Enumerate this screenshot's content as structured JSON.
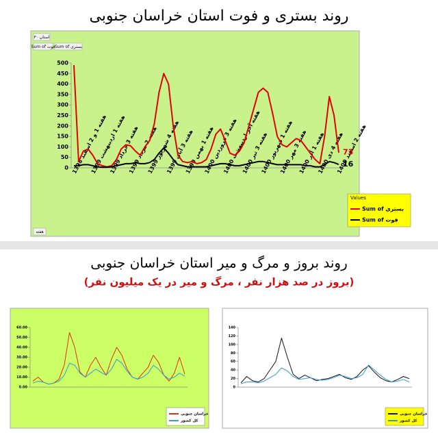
{
  "header": {
    "title": "روند بستری و فوت استان خراسان جنوبی"
  },
  "controls": {
    "filter": "استان ۳۰",
    "field1": "Sum of فوت",
    "field2": "Sum of بستری",
    "axis_field": "هفته"
  },
  "section2": {
    "title": "روند بروز و مرگ و میر استان خراسان جنوبی",
    "subtitle": "(بروز در صد هزار نفر ، مرگ و میر در یک میلیون نفر)"
  },
  "chart_data": [
    {
      "type": "line",
      "legend_title": "Values",
      "categories": [
        "هفته 1 و 2 اسفند 1398",
        null,
        null,
        null,
        "هفته 1 اردیبهشت 1399",
        null,
        null,
        null,
        "هفته 3 خرداد 1399",
        null,
        null,
        null,
        "هفته 2 مرداد 1399",
        null,
        null,
        null,
        "هفته 4 شهریور 1399",
        null,
        null,
        null,
        "هفته 3 آبان 1399",
        null,
        null,
        null,
        "هفته 1 بهمن 1399",
        null,
        null,
        null,
        "هفته 3 فروردین 1400",
        null,
        null,
        null,
        "هفته آخر اردیبهشت 1400",
        null,
        null,
        null,
        "هفته 3 تیر 1400",
        null,
        null,
        null,
        "هفته 1 شهریور 1400",
        null,
        null,
        null,
        "هفته 3 مهر 1400",
        null,
        null,
        null,
        "هفته 1 آذر 1400",
        null,
        null,
        null,
        "هفته 4 دی 1400",
        null,
        null,
        null,
        "هفته 2 اسفند 1400"
      ],
      "series": [
        {
          "name": "Sum of بستری",
          "color": "#e00000",
          "end_label": true,
          "values": [
            490,
            30,
            80,
            90,
            60,
            20,
            10,
            5,
            10,
            40,
            90,
            110,
            105,
            80,
            60,
            100,
            130,
            210,
            360,
            450,
            400,
            200,
            60,
            30,
            25,
            30,
            20,
            25,
            40,
            90,
            160,
            185,
            130,
            70,
            60,
            80,
            120,
            200,
            280,
            360,
            380,
            360,
            260,
            150,
            110,
            100,
            120,
            140,
            130,
            100,
            70,
            40,
            20,
            150,
            340,
            250,
            73
          ]
        },
        {
          "name": "Sum of فوت",
          "color": "#000000",
          "end_label": true,
          "values": [
            10,
            10,
            15,
            15,
            10,
            5,
            3,
            3,
            5,
            10,
            15,
            20,
            20,
            25,
            20,
            20,
            25,
            40,
            70,
            95,
            70,
            40,
            15,
            10,
            5,
            5,
            5,
            5,
            5,
            10,
            15,
            20,
            20,
            15,
            10,
            10,
            15,
            20,
            25,
            30,
            30,
            25,
            20,
            15,
            15,
            15,
            15,
            15,
            15,
            10,
            10,
            5,
            5,
            15,
            30,
            25,
            16
          ]
        }
      ],
      "ylim": [
        0,
        500
      ],
      "yticks": [
        0,
        50,
        100,
        150,
        200,
        250,
        300,
        350,
        400,
        450,
        500
      ],
      "grid": false,
      "background": "#c9f28c"
    },
    {
      "type": "line",
      "categories": [
        null,
        null,
        null,
        null,
        null,
        null,
        null,
        null,
        null,
        null,
        null,
        null,
        null,
        null,
        null,
        null,
        null,
        null,
        null,
        null,
        null,
        null,
        null,
        null,
        null,
        null,
        null,
        null,
        null,
        null
      ],
      "series": [
        {
          "name": "خراسان جنوبی",
          "color": "#e03010",
          "values": [
            6,
            10,
            5,
            3,
            4,
            8,
            22,
            55,
            40,
            15,
            10,
            22,
            30,
            20,
            12,
            28,
            40,
            32,
            18,
            10,
            8,
            14,
            20,
            32,
            25,
            12,
            6,
            14,
            30,
            13
          ]
        },
        {
          "name": "کل کشور",
          "color": "#2aa0d8",
          "values": [
            4,
            6,
            5,
            3,
            4,
            6,
            12,
            24,
            22,
            14,
            10,
            14,
            18,
            15,
            12,
            18,
            28,
            24,
            16,
            10,
            8,
            10,
            14,
            22,
            18,
            12,
            8,
            10,
            14,
            11
          ]
        }
      ],
      "ylim": [
        0,
        60
      ],
      "yticks": [
        {
          "value": 0,
          "label": "0.00"
        },
        {
          "value": 10,
          "label": "10.00"
        },
        {
          "value": 20,
          "label": "20.00"
        },
        {
          "value": 30,
          "label": "30.00"
        },
        {
          "value": 40,
          "label": "40.00"
        },
        {
          "value": 50,
          "label": "50.00"
        },
        {
          "value": 60,
          "label": "60.00"
        }
      ],
      "grid": false,
      "background": "#ccff66"
    },
    {
      "type": "line",
      "categories": [
        null,
        null,
        null,
        null,
        null,
        null,
        null,
        null,
        null,
        null,
        null,
        null,
        null,
        null,
        null,
        null,
        null,
        null,
        null,
        null,
        null,
        null,
        null,
        null,
        null,
        null,
        null,
        null,
        null,
        null
      ],
      "series": [
        {
          "name": "خراسان جنوبی",
          "color": "#111111",
          "values": [
            10,
            25,
            15,
            12,
            20,
            40,
            60,
            115,
            70,
            30,
            20,
            28,
            22,
            15,
            18,
            20,
            25,
            30,
            22,
            18,
            25,
            40,
            50,
            35,
            22,
            15,
            12,
            18,
            25,
            20
          ]
        },
        {
          "name": "کل کشور",
          "color": "#3399dd",
          "values": [
            8,
            12,
            12,
            10,
            14,
            22,
            30,
            45,
            38,
            25,
            18,
            20,
            22,
            18,
            16,
            18,
            22,
            28,
            25,
            20,
            22,
            30,
            52,
            40,
            28,
            18,
            12,
            14,
            18,
            12
          ]
        }
      ],
      "ylim": [
        0,
        140
      ],
      "yticks": [
        0,
        20,
        40,
        60,
        80,
        100,
        120,
        140
      ],
      "grid": false,
      "background": "#ffffff"
    }
  ]
}
